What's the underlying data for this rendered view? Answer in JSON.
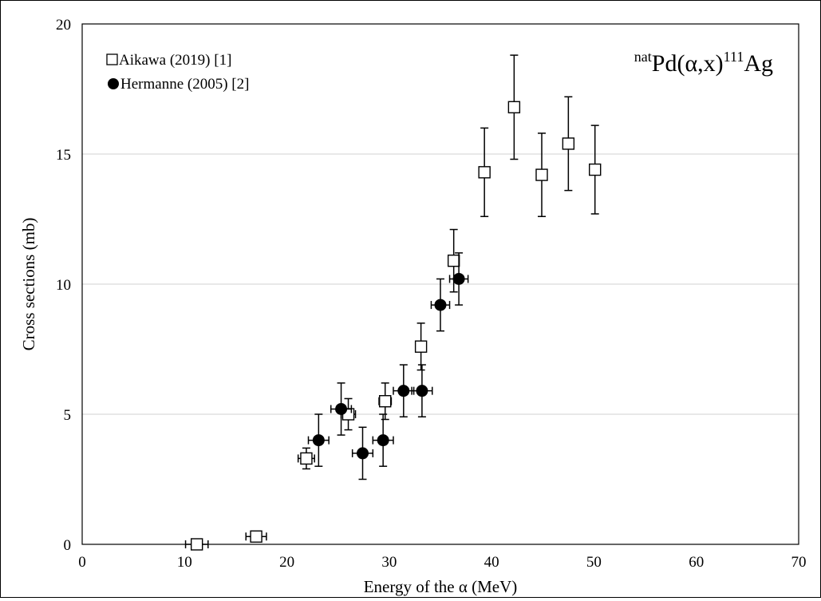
{
  "chart_data": {
    "type": "scatter",
    "title": "natPd(α,x)111Ag",
    "title_parts": {
      "pre_sup": "nat",
      "element": "Pd(α,x)",
      "mass_sup": "111",
      "product": "Ag"
    },
    "xlabel": "Energy of the α (MeV)",
    "ylabel": "Cross sections (mb)",
    "xlim": [
      0,
      70
    ],
    "ylim": [
      0,
      20
    ],
    "xticks": [
      0,
      10,
      20,
      30,
      40,
      50,
      60,
      70
    ],
    "yticks": [
      0,
      5,
      10,
      15,
      20
    ],
    "grid": "horizontal",
    "legend_position": "top-left",
    "series": [
      {
        "name": "Aikawa (2019) [1]",
        "marker": "open-square",
        "color": "#000000",
        "points": [
          {
            "x": 11.2,
            "y": 0.0,
            "xerr": 1.1,
            "yerr": 0.1
          },
          {
            "x": 17.0,
            "y": 0.3,
            "xerr": 1.0,
            "yerr": 0.1
          },
          {
            "x": 21.9,
            "y": 3.3,
            "xerr": 0.8,
            "yerr": 0.4
          },
          {
            "x": 26.0,
            "y": 5.0,
            "xerr": 0.7,
            "yerr": 0.6
          },
          {
            "x": 29.6,
            "y": 5.5,
            "xerr": 0.6,
            "yerr": 0.7
          },
          {
            "x": 33.1,
            "y": 7.6,
            "xerr": 0.5,
            "yerr": 0.9
          },
          {
            "x": 36.3,
            "y": 10.9,
            "xerr": 0.5,
            "yerr": 1.2
          },
          {
            "x": 39.3,
            "y": 14.3,
            "xerr": 0.4,
            "yerr": 1.7
          },
          {
            "x": 42.2,
            "y": 16.8,
            "xerr": 0.4,
            "yerr": 2.0
          },
          {
            "x": 44.9,
            "y": 14.2,
            "xerr": 0.4,
            "yerr": 1.6
          },
          {
            "x": 47.5,
            "y": 15.4,
            "xerr": 0.4,
            "yerr": 1.8
          },
          {
            "x": 50.1,
            "y": 14.4,
            "xerr": 0.4,
            "yerr": 1.7
          }
        ]
      },
      {
        "name": "Hermanne (2005) [2]",
        "marker": "filled-circle",
        "color": "#000000",
        "points": [
          {
            "x": 23.1,
            "y": 4.0,
            "xerr": 1.0,
            "yerr": 1.0
          },
          {
            "x": 25.3,
            "y": 5.2,
            "xerr": 1.0,
            "yerr": 1.0
          },
          {
            "x": 27.4,
            "y": 3.5,
            "xerr": 1.0,
            "yerr": 1.0
          },
          {
            "x": 29.4,
            "y": 4.0,
            "xerr": 1.0,
            "yerr": 1.0
          },
          {
            "x": 31.4,
            "y": 5.9,
            "xerr": 1.0,
            "yerr": 1.0
          },
          {
            "x": 33.2,
            "y": 5.9,
            "xerr": 1.0,
            "yerr": 1.0
          },
          {
            "x": 35.0,
            "y": 9.2,
            "xerr": 0.9,
            "yerr": 1.0
          },
          {
            "x": 36.8,
            "y": 10.2,
            "xerr": 0.9,
            "yerr": 1.0
          }
        ]
      }
    ]
  }
}
